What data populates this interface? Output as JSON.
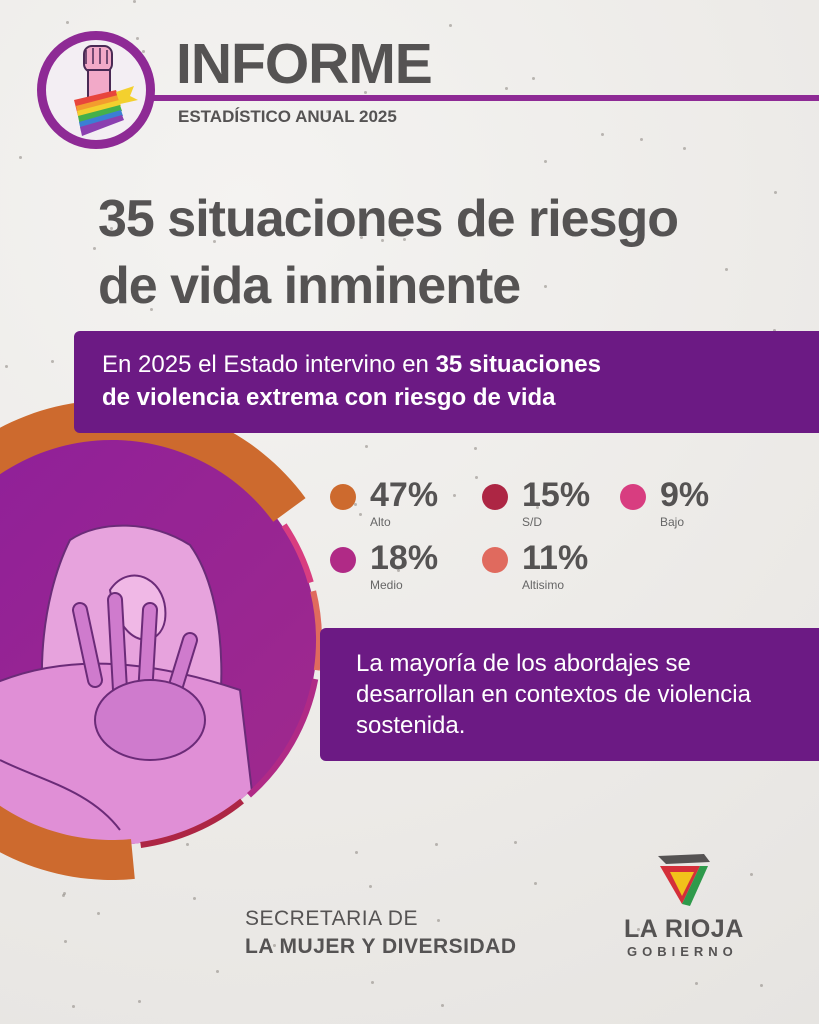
{
  "header": {
    "title": "INFORME",
    "subtitle": "ESTADÍSTICO ANUAL 2025"
  },
  "headline": {
    "line1": "35 situaciones de riesgo",
    "line2": "de vida inminente"
  },
  "intro": {
    "prefix": "En 2025 el Estado intervino en ",
    "bold": "35 situaciones de violencia extrema con riesgo de vida",
    "bold_line1": "35 situaciones",
    "bold_line2": "de violencia extrema con riesgo de vida"
  },
  "chart_data": {
    "type": "pie",
    "title": "35 situaciones de riesgo de vida inminente",
    "unit": "%",
    "slices": [
      {
        "label": "Alto",
        "value": 47,
        "display": "47%",
        "color": "#cd6a2e"
      },
      {
        "label": "S/D",
        "value": 15,
        "display": "15%",
        "color": "#ad2644"
      },
      {
        "label": "Bajo",
        "value": 9,
        "display": "9%",
        "color": "#d83d80"
      },
      {
        "label": "Medio",
        "value": 18,
        "display": "18%",
        "color": "#b02a86"
      },
      {
        "label": "Altísimo",
        "value": 11,
        "display": "11%",
        "color": "#e06a5e",
        "legend_text": "Altisimo"
      }
    ]
  },
  "legend": [
    {
      "value": "47%",
      "label": "Alto",
      "color": "#cd6a2e"
    },
    {
      "value": "15%",
      "label": "S/D",
      "color": "#ad2644"
    },
    {
      "value": "9%",
      "label": "Bajo",
      "color": "#d83d80"
    },
    {
      "value": "18%",
      "label": "Medio",
      "color": "#b02a86"
    },
    {
      "value": "11%",
      "label": "Altisimo",
      "color": "#e06a5e"
    }
  ],
  "note": {
    "text": "La mayoría de los abordajes se desarrollan en contextos de violencia sostenida."
  },
  "footer": {
    "secretaria_line1": "SECRETARIA DE",
    "secretaria_line2": "LA MUJER Y DIVERSIDAD",
    "gov_name": "LA RIOJA",
    "gov_sub": "GOBIERNO"
  },
  "colors": {
    "purple": "#6c1a84",
    "accent": "#8e2a95",
    "text": "#555353"
  }
}
